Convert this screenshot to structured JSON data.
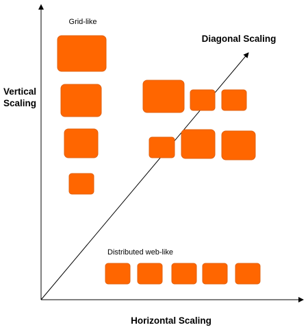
{
  "diagram": {
    "labels": {
      "vertical_line1": "Vertical",
      "vertical_line2": "Scaling",
      "horizontal": "Horizontal Scaling",
      "diagonal": "Diagonal Scaling",
      "grid_like": "Grid-like",
      "distributed": "Distributed web-like"
    },
    "colors": {
      "box_fill": "#ff6600",
      "axis": "#000000",
      "text": "#000000"
    }
  }
}
